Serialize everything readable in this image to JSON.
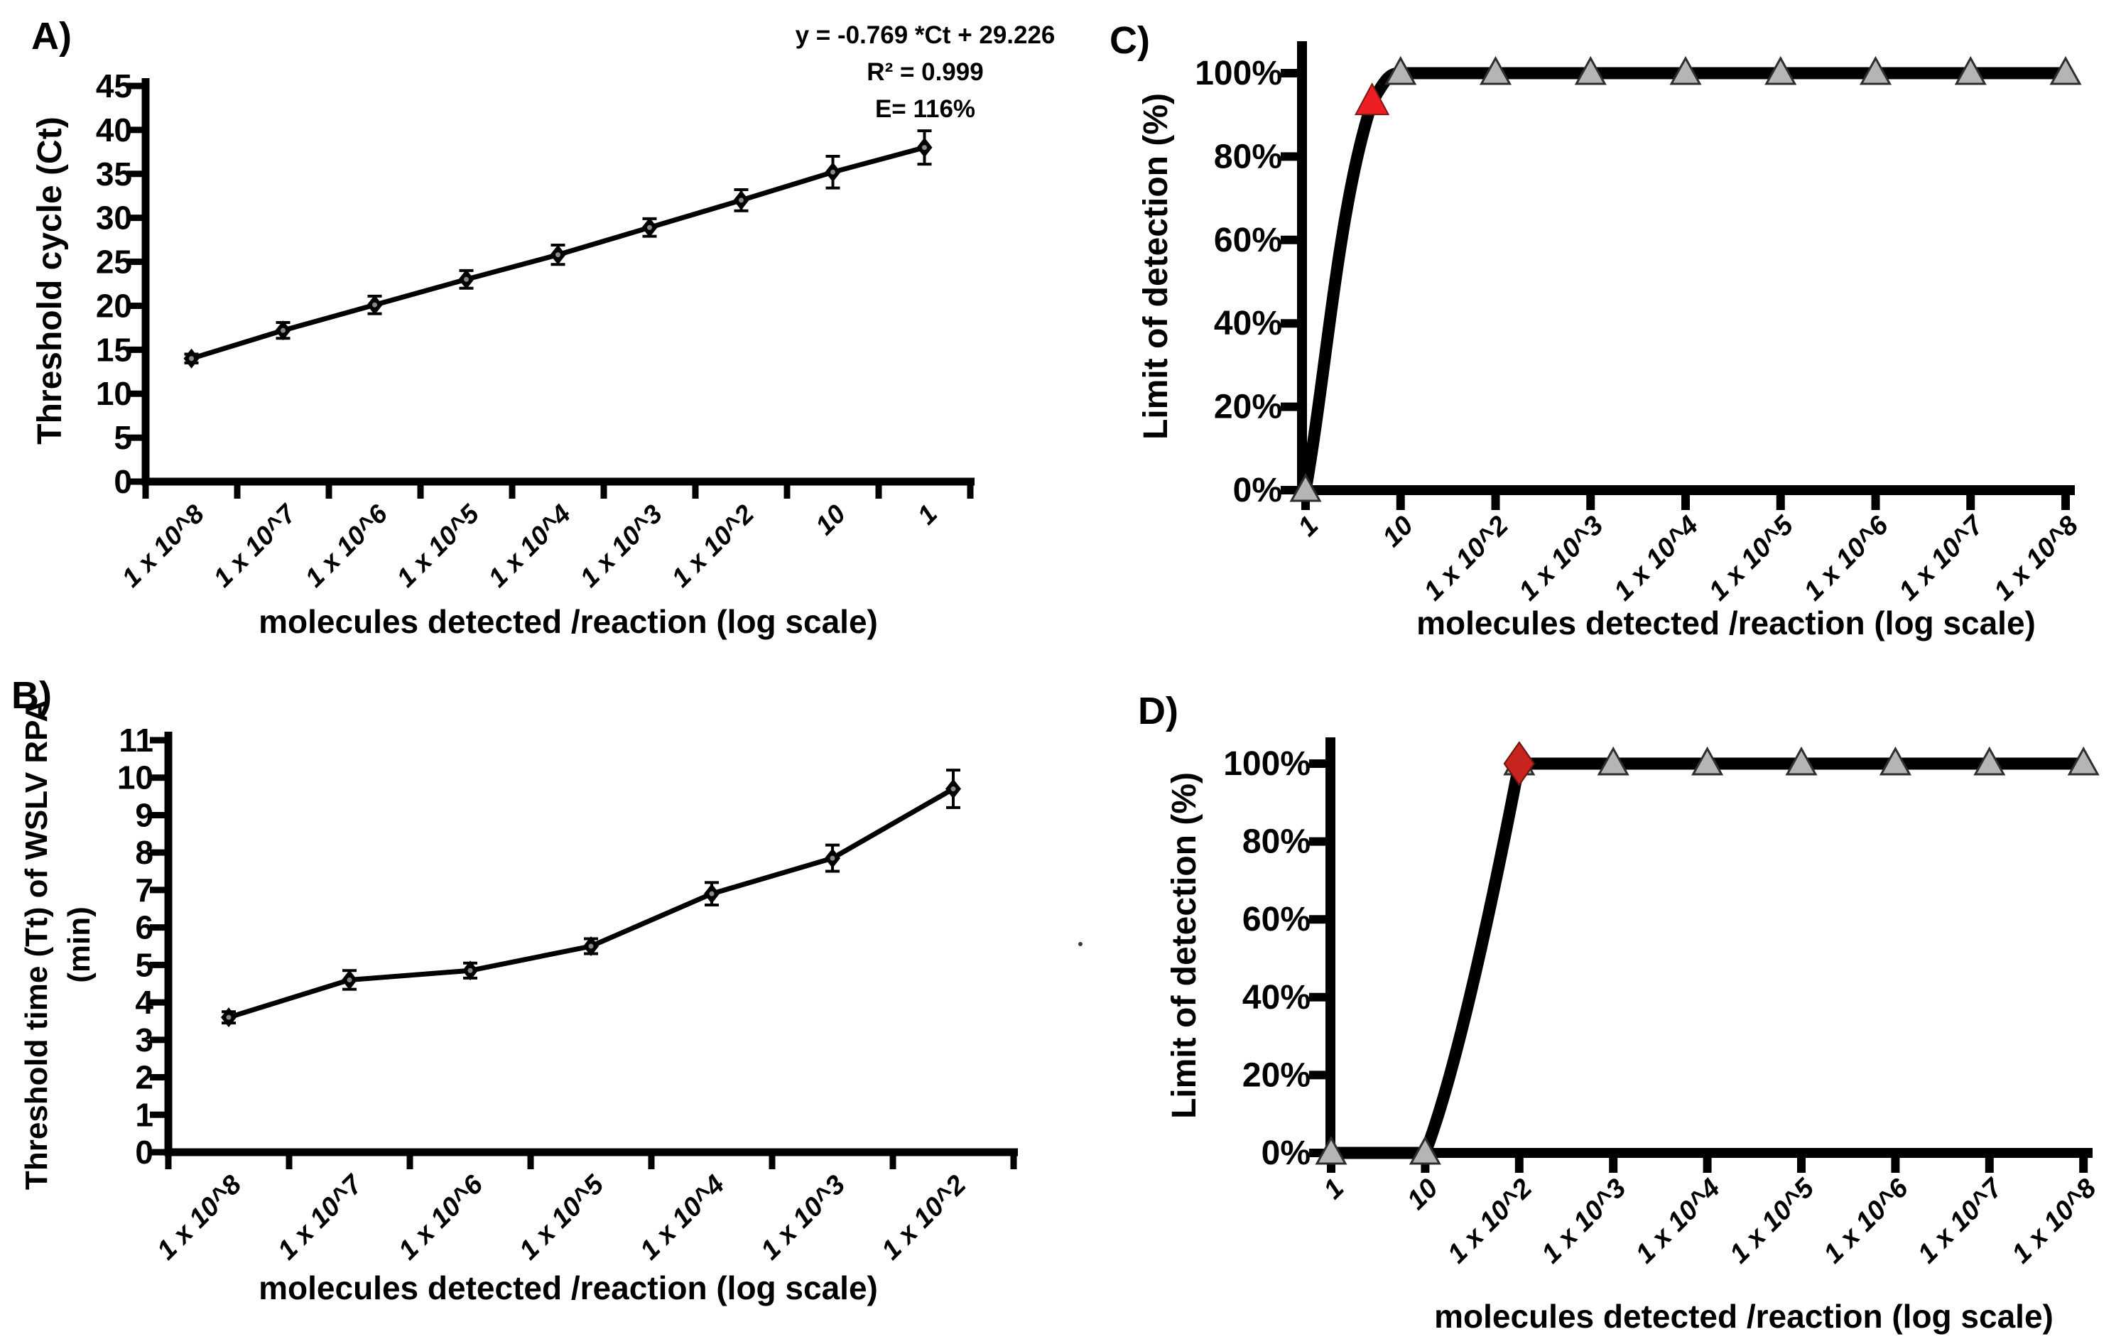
{
  "chart_data": [
    {
      "panel_letter": "A)",
      "type": "line",
      "ylabel": "Threshold cycle (Ct)",
      "xlabel": "molecules detected /reaction (log scale)",
      "categories": [
        "1 x 10^8",
        "1 x 10^7",
        "1 x 10^6",
        "1 x 10^5",
        "1 x 10^4",
        "1 x 10^3",
        "1 x 10^2",
        "10",
        "1"
      ],
      "values": [
        14,
        17.2,
        20.1,
        23,
        25.8,
        28.9,
        32,
        35.2,
        38
      ],
      "errors": [
        0.5,
        0.9,
        1.0,
        1.0,
        1.1,
        1.0,
        1.2,
        1.8,
        1.9
      ],
      "ylim": [
        0,
        45
      ],
      "ytick_step": 5,
      "ytick_suffix": "",
      "marker": "black-diamond",
      "annotations": [
        "y = -0.769 *Ct + 29.226",
        "R² = 0.999",
        "E= 116%"
      ],
      "legend": "none",
      "grid": "off"
    },
    {
      "panel_letter": "B)",
      "type": "line",
      "ylabel_line1": "Threshold time (Tt) of WSLV RPA",
      "ylabel_line2": "(min)",
      "xlabel": "molecules detected /reaction (log scale)",
      "categories": [
        "1 x 10^8",
        "1 x 10^7",
        "1 x 10^6",
        "1 x 10^5",
        "1 x 10^4",
        "1 x 10^3",
        "1 x 10^2"
      ],
      "values": [
        3.6,
        4.6,
        4.85,
        5.5,
        6.9,
        7.85,
        9.7
      ],
      "errors": [
        0.15,
        0.25,
        0.2,
        0.2,
        0.3,
        0.35,
        0.5
      ],
      "ylim": [
        0,
        11
      ],
      "ytick_step": 1,
      "ytick_suffix": "",
      "marker": "black-diamond",
      "legend": "none",
      "grid": "off"
    },
    {
      "panel_letter": "C)",
      "type": "line",
      "ylabel": "Limit of detection (%)",
      "xlabel": "molecules detected /reaction (log scale)",
      "categories": [
        "1",
        "10",
        "1 x 10^2",
        "1 x 10^3",
        "1 x 10^4",
        "1 x 10^5",
        "1 x 10^6",
        "1 x 10^7",
        "1 x 10^8"
      ],
      "values": [
        0,
        100,
        100,
        100,
        100,
        100,
        100,
        100,
        100
      ],
      "ylim": [
        0,
        100
      ],
      "ytick_step": 20,
      "ytick_suffix": "%",
      "marker": "gray-triangle",
      "lod_marker": {
        "shape": "red-triangle",
        "color": "#ed1f24",
        "position": "between 1 and 10",
        "approx_value_pct": 93
      },
      "legend": "none",
      "grid": "off"
    },
    {
      "panel_letter": "D)",
      "type": "line",
      "ylabel": "Limit of detection (%)",
      "xlabel": "molecules detected /reaction (log scale)",
      "categories": [
        "1",
        "10",
        "1 x 10^2",
        "1 x 10^3",
        "1 x 10^4",
        "1 x 10^5",
        "1 x 10^6",
        "1 x 10^7",
        "1 x 10^8"
      ],
      "values": [
        0,
        0,
        100,
        100,
        100,
        100,
        100,
        100,
        100
      ],
      "ylim": [
        0,
        100
      ],
      "ytick_step": 20,
      "ytick_suffix": "%",
      "marker": "gray-triangle",
      "lod_marker": {
        "shape": "red-diamond",
        "color": "#c7231f",
        "at_category": "1 x 10^2",
        "value_pct": 100
      },
      "legend": "none",
      "grid": "off"
    }
  ],
  "colors": {
    "series": "#000000",
    "gray_marker_fill": "#b5b5b5",
    "gray_marker_stroke": "#2e2e2e",
    "red_triangle": "#ed1f24",
    "red_diamond": "#c7231f",
    "text": "#000000",
    "background": "#ffffff"
  }
}
